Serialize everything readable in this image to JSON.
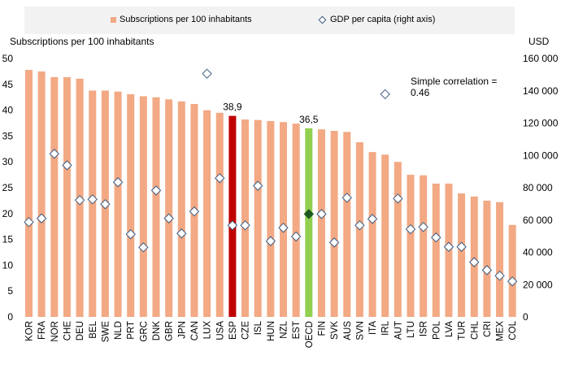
{
  "legend": {
    "bar_label": "Subscriptions per 100 inhabitants",
    "diamond_label": "GDP per capita (right axis)"
  },
  "chart_data": {
    "type": "bar",
    "title": "",
    "xlabel": "",
    "ylabel": "Subscriptions per 100 inhabitants",
    "y2label": "USD",
    "ylim": [
      0,
      50
    ],
    "y2lim": [
      0,
      160000
    ],
    "yticks": [
      0,
      5,
      10,
      15,
      20,
      25,
      30,
      35,
      40,
      45,
      50
    ],
    "y2ticks": [
      "0",
      "20 000",
      "40 000",
      "60 000",
      "80 000",
      "100 000",
      "120 000",
      "140 000",
      "160 000"
    ],
    "y2tick_values": [
      0,
      20000,
      40000,
      60000,
      80000,
      100000,
      120000,
      140000,
      160000
    ],
    "grid": false,
    "legend_position": "top",
    "categories": [
      "KOR",
      "FRA",
      "NOR",
      "CHE",
      "DEU",
      "BEL",
      "SWE",
      "NLD",
      "PRT",
      "GRC",
      "DNK",
      "GBR",
      "JPN",
      "CAN",
      "LUX",
      "USA",
      "ESP",
      "CZE",
      "ISL",
      "HUN",
      "NZL",
      "EST",
      "OECD",
      "FIN",
      "SVK",
      "AUS",
      "SVN",
      "ITA",
      "IRL",
      "AUT",
      "LTU",
      "ISR",
      "POL",
      "LVA",
      "TUR",
      "CHL",
      "CRI",
      "MEX",
      "COL"
    ],
    "series": [
      {
        "name": "Subscriptions per 100 inhabitants",
        "type": "bar",
        "axis": "left",
        "color": "#f2a984",
        "values": [
          47.8,
          47.5,
          46.4,
          46.4,
          46.1,
          43.8,
          43.8,
          43.6,
          43.1,
          42.7,
          42.5,
          42.1,
          41.7,
          41.2,
          40.0,
          39.5,
          38.9,
          38.2,
          38.1,
          37.9,
          37.7,
          37.4,
          36.5,
          36.3,
          36.0,
          35.8,
          33.8,
          31.9,
          31.4,
          30.0,
          27.5,
          27.4,
          25.8,
          25.8,
          23.9,
          23.3,
          22.5,
          22.2,
          17.8
        ]
      },
      {
        "name": "GDP per capita (right axis)",
        "type": "scatter",
        "marker": "diamond",
        "axis": "right",
        "values": [
          58700,
          61000,
          101000,
          93900,
          72300,
          72800,
          69800,
          83400,
          51200,
          43100,
          78300,
          61000,
          51700,
          65300,
          150600,
          85900,
          56700,
          56700,
          81200,
          46900,
          55200,
          49800,
          63700,
          63700,
          46100,
          73800,
          56700,
          60700,
          137900,
          73300,
          54300,
          55700,
          49200,
          43400,
          43400,
          33900,
          29000,
          25500,
          22000
        ]
      }
    ],
    "highlights": [
      {
        "category": "ESP",
        "color": "#c00000",
        "label": "38,9"
      },
      {
        "category": "OECD",
        "color": "#92d050",
        "label": "36,5",
        "marker_color": "#1e5a1e"
      }
    ],
    "annotations": [
      {
        "text_line1": "Simple correlation =",
        "text_line2": "0.46"
      }
    ]
  }
}
